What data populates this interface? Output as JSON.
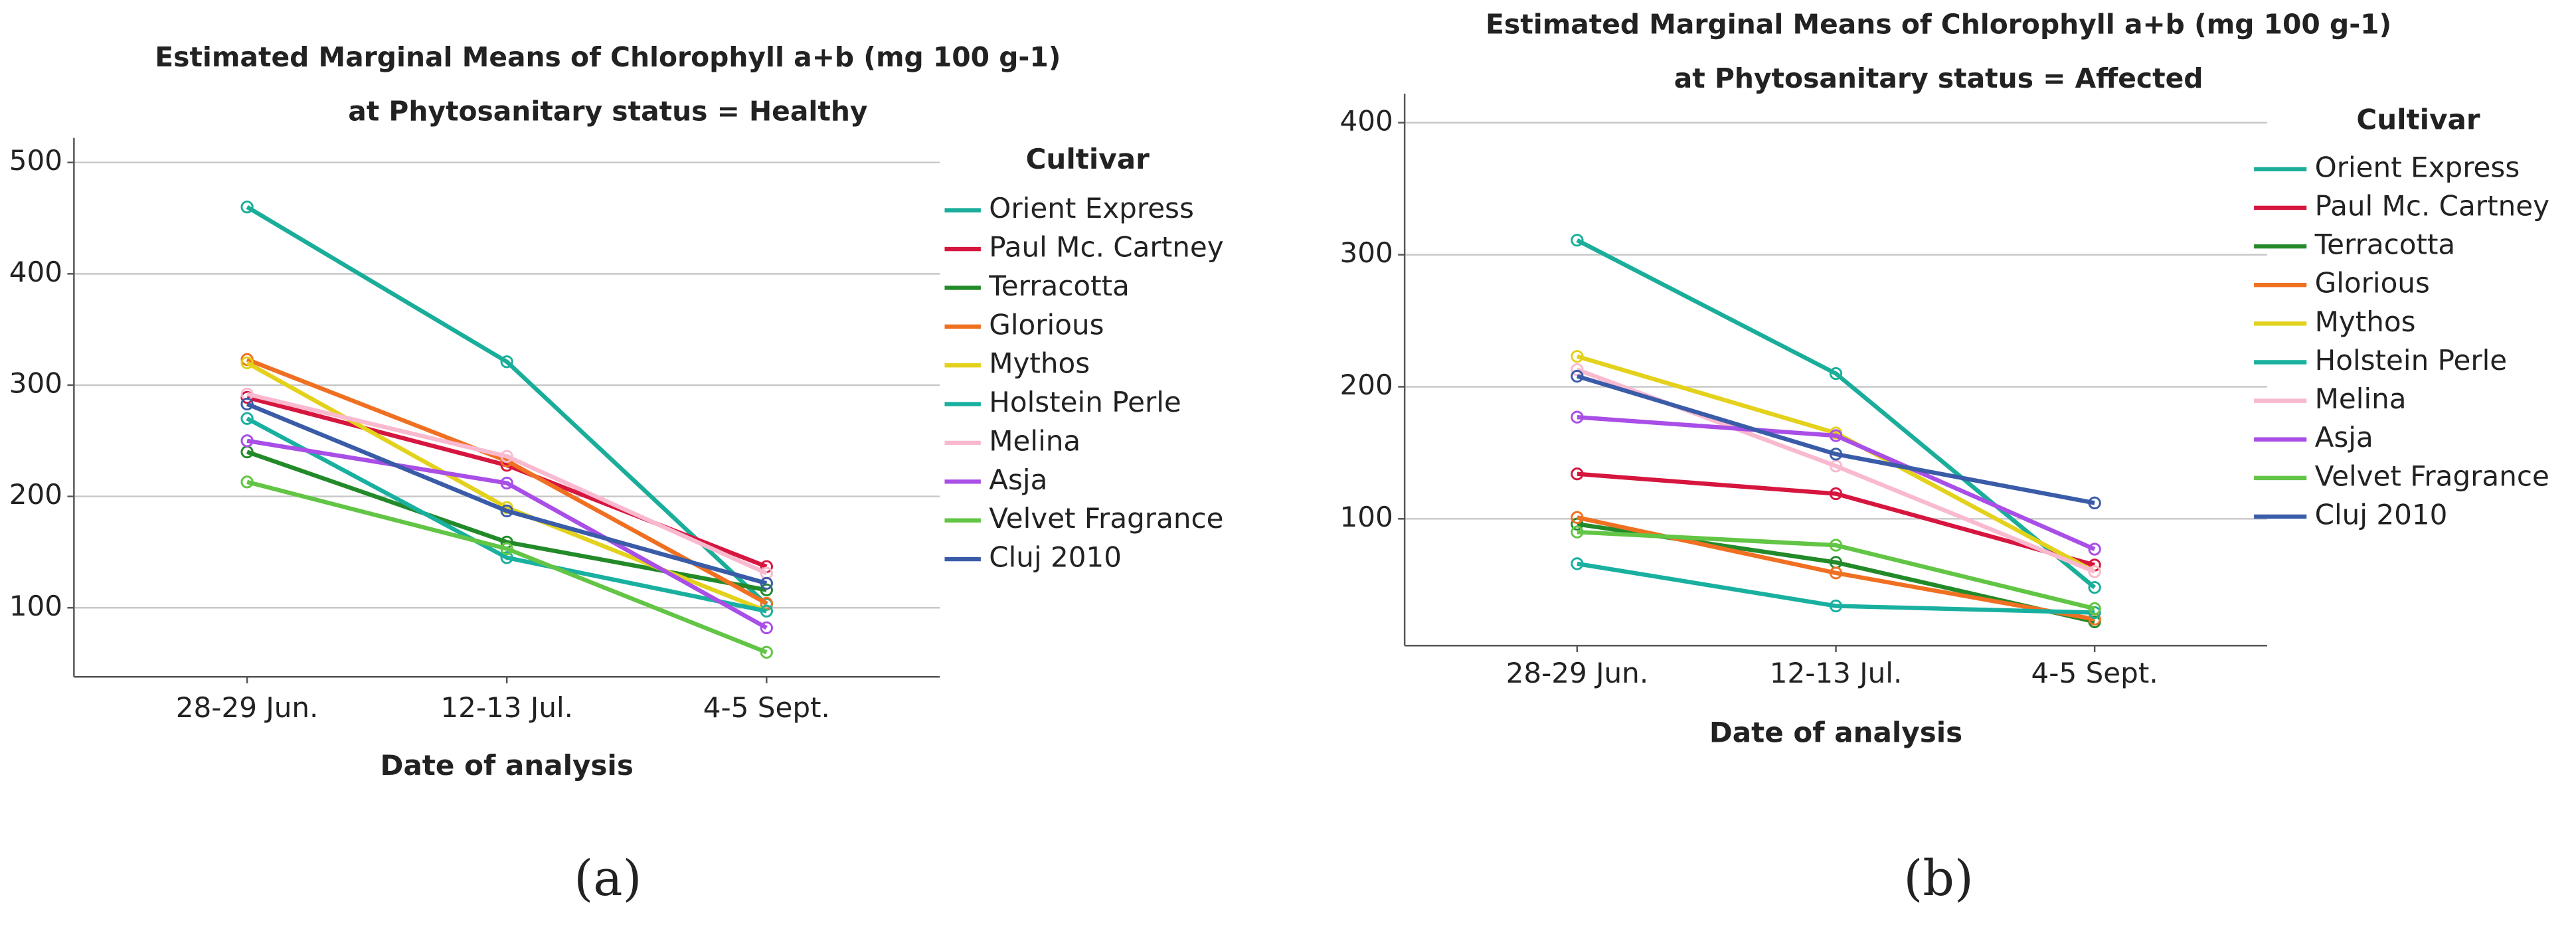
{
  "chart_data": [
    {
      "type": "line",
      "title": "Estimated Marginal Means of Chlorophyll a+b (mg 100 g-1)",
      "subtitle": "at Phytosanitary status = Healthy",
      "x_label": "Date of analysis",
      "legend_title": "Cultivar",
      "caption": "(a)",
      "categories": [
        "28-29 Jun.",
        "12-13 Jul.",
        "4-5 Sept."
      ],
      "ylim": [
        38,
        522
      ],
      "yticks": [
        100,
        200,
        300,
        400,
        500
      ],
      "grid": true,
      "series": [
        {
          "name": "Orient Express",
          "color": "#1aae9a",
          "values": [
            460,
            321,
            103
          ]
        },
        {
          "name": "Paul Mc. Cartney",
          "color": "#d6163f",
          "values": [
            289,
            228,
            137
          ]
        },
        {
          "name": "Terracotta",
          "color": "#238a2a",
          "values": [
            240,
            159,
            116
          ]
        },
        {
          "name": "Glorious",
          "color": "#f07022",
          "values": [
            323,
            232,
            104
          ]
        },
        {
          "name": "Mythos",
          "color": "#e3d11c",
          "values": [
            320,
            190,
            97
          ]
        },
        {
          "name": "Holstein Perle",
          "color": "#19b0a0",
          "values": [
            270,
            145,
            97
          ]
        },
        {
          "name": "Melina",
          "color": "#f9b9cf",
          "values": [
            292,
            236,
            131
          ]
        },
        {
          "name": "Asja",
          "color": "#a94ee6",
          "values": [
            250,
            212,
            82
          ]
        },
        {
          "name": "Velvet Fragrance",
          "color": "#62c545",
          "values": [
            213,
            153,
            60
          ]
        },
        {
          "name": "Cluj 2010",
          "color": "#3a5ca8",
          "values": [
            283,
            187,
            122
          ]
        }
      ]
    },
    {
      "type": "line",
      "title": "Estimated Marginal Means of Chlorophyll a+b (mg 100 g-1)",
      "subtitle": "at Phytosanitary status = Affected",
      "x_label": "Date of analysis",
      "legend_title": "Cultivar",
      "caption": "(b)",
      "categories": [
        "28-29 Jun.",
        "12-13 Jul.",
        "4-5 Sept."
      ],
      "ylim": [
        4,
        422
      ],
      "yticks": [
        100,
        200,
        300,
        400
      ],
      "grid": true,
      "series": [
        {
          "name": "Orient Express",
          "color": "#1aae9a",
          "values": [
            311,
            210,
            48
          ]
        },
        {
          "name": "Paul Mc. Cartney",
          "color": "#d6163f",
          "values": [
            134,
            119,
            65
          ]
        },
        {
          "name": "Terracotta",
          "color": "#238a2a",
          "values": [
            96,
            67,
            22
          ]
        },
        {
          "name": "Glorious",
          "color": "#f07022",
          "values": [
            101,
            59,
            24
          ]
        },
        {
          "name": "Mythos",
          "color": "#e3d11c",
          "values": [
            223,
            165,
            60
          ]
        },
        {
          "name": "Holstein Perle",
          "color": "#19b0a0",
          "values": [
            66,
            34,
            29
          ]
        },
        {
          "name": "Melina",
          "color": "#f9b9cf",
          "values": [
            213,
            140,
            60
          ]
        },
        {
          "name": "Asja",
          "color": "#a94ee6",
          "values": [
            177,
            163,
            77
          ]
        },
        {
          "name": "Velvet Fragrance",
          "color": "#62c545",
          "values": [
            90,
            80,
            32
          ]
        },
        {
          "name": "Cluj 2010",
          "color": "#3a5ca8",
          "values": [
            208,
            149,
            112
          ]
        }
      ]
    }
  ]
}
